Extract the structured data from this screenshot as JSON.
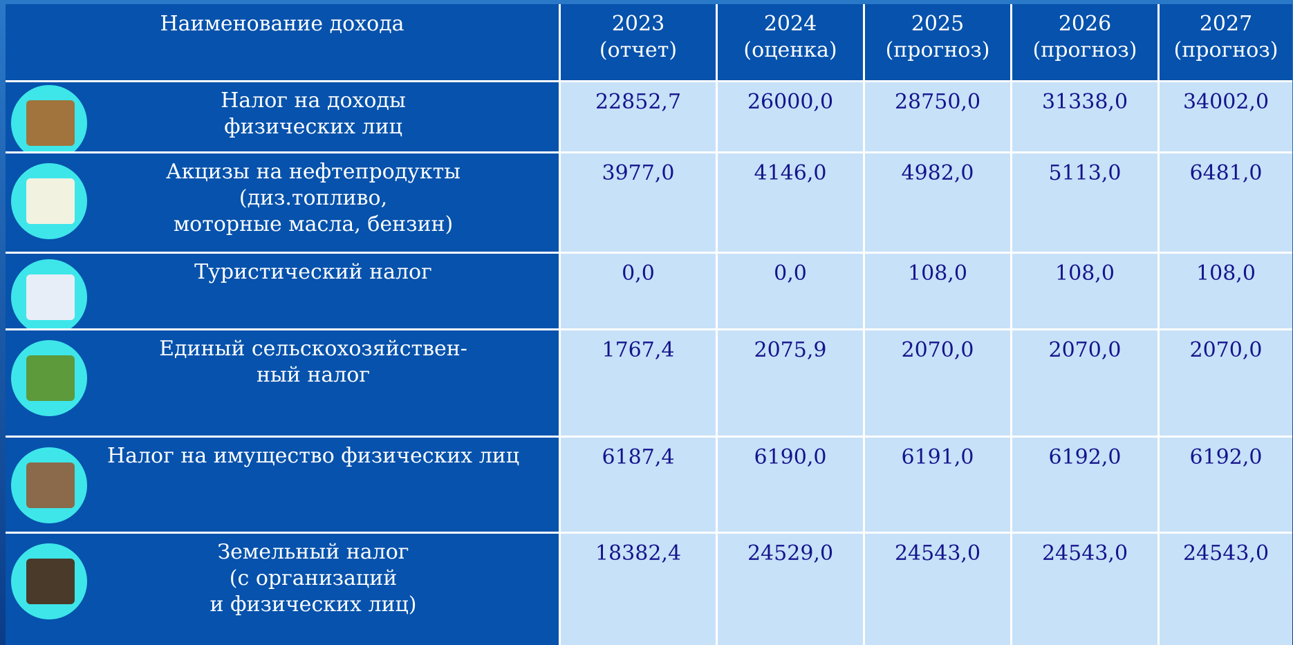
{
  "table": {
    "header": {
      "name": "Наименование дохода",
      "years": [
        {
          "year": "2023",
          "note": "(отчет)"
        },
        {
          "year": "2024",
          "note": "(оценка)"
        },
        {
          "year": "2025",
          "note": "(прогноз)"
        },
        {
          "year": "2026",
          "note": "(прогноз)"
        },
        {
          "year": "2027",
          "note": "(прогноз)"
        }
      ]
    },
    "rows": [
      {
        "name": [
          "Налог на доходы",
          "физических лиц"
        ],
        "values": [
          "22852,7",
          "26000,0",
          "28750,0",
          "31338,0",
          "34002,0"
        ]
      },
      {
        "name": [
          "Акцизы на нефтепродукты",
          "(диз.топливо,",
          "моторные масла, бензин)"
        ],
        "values": [
          "3977,0",
          "4146,0",
          "4982,0",
          "5113,0",
          "6481,0"
        ]
      },
      {
        "name": [
          "Туристический налог"
        ],
        "values": [
          "0,0",
          "0,0",
          "108,0",
          "108,0",
          "108,0"
        ]
      },
      {
        "name": [
          "Единый  сельскохозяйствен-",
          "ный   налог"
        ],
        "values": [
          "1767,4",
          "2075,9",
          "2070,0",
          "2070,0",
          "2070,0"
        ]
      },
      {
        "name": [
          "Налог на имущество физических лиц"
        ],
        "values": [
          "6187,4",
          "6190,0",
          "6191,0",
          "6192,0",
          "6192,0"
        ]
      },
      {
        "name": [
          "Земельный налог",
          "(с организаций",
          "и физических лиц)"
        ],
        "values": [
          "18382,4",
          "24529,0",
          "24543,0",
          "24543,0",
          "24543,0"
        ]
      }
    ]
  }
}
